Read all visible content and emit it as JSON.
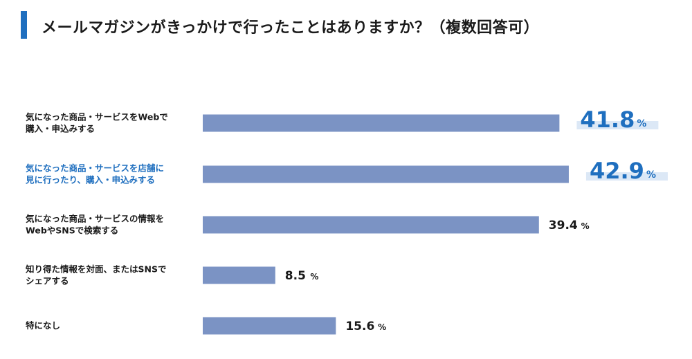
{
  "title": "メールマガジンがきっかけで行ったことはありますか？（複数回答可）",
  "colors": {
    "accent": "#1f6fbf",
    "bar": "#7b93c4",
    "text": "#1a1a1a",
    "highlight_band": "#dce8f6"
  },
  "chart_data": {
    "type": "bar",
    "orientation": "horizontal",
    "unit": "%",
    "xlim": [
      0,
      50
    ],
    "grid": false,
    "categories": [
      [
        "気になった商品・サービスをWebで",
        "購入・申込みする"
      ],
      [
        "気になった商品・サービスを店舗に",
        "見に行ったり、購入・申込みする"
      ],
      [
        "気になった商品・サービスの情報を",
        "WebやSNSで検索する"
      ],
      [
        "知り得た情報を対面、またはSNSで",
        "シェアする"
      ],
      [
        "特になし"
      ]
    ],
    "values": [
      41.8,
      42.9,
      39.4,
      8.5,
      15.6
    ],
    "value_labels": [
      "41.8",
      "42.9",
      "39.4",
      "8.5",
      "15.6"
    ],
    "highlighted": [
      true,
      true,
      false,
      false,
      false
    ],
    "highlighted_label": [
      false,
      true,
      false,
      false,
      false
    ]
  }
}
